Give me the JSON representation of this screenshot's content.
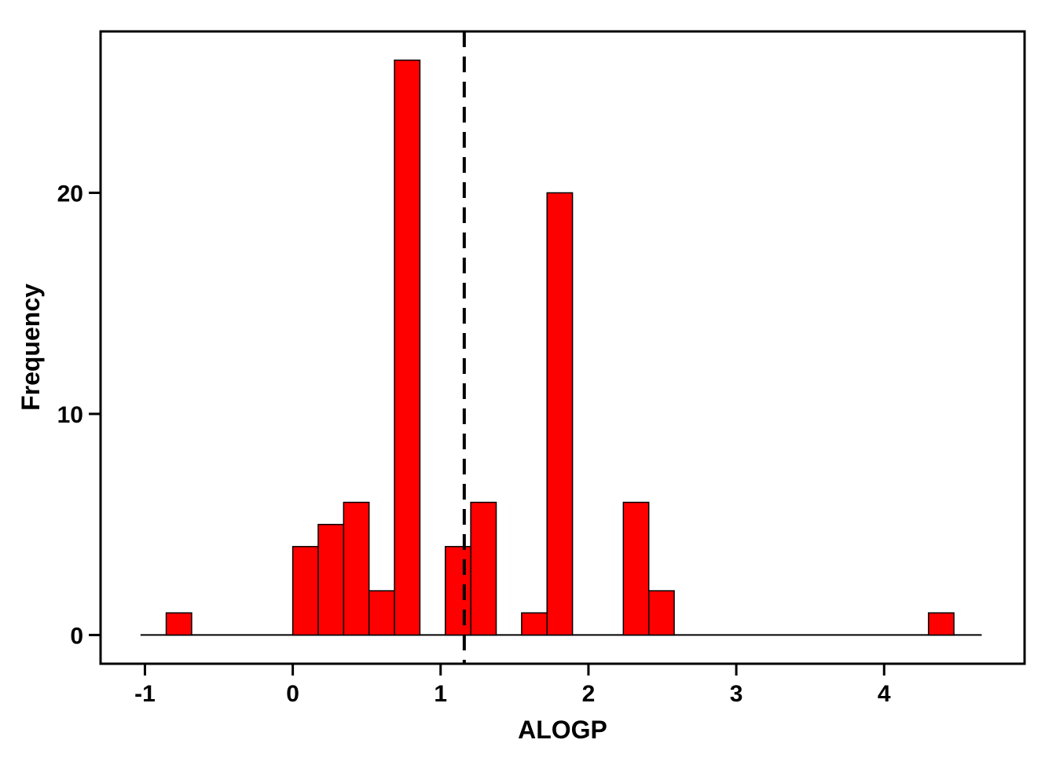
{
  "chart_data": {
    "type": "bar",
    "title": "",
    "xlabel": "ALOGP",
    "ylabel": "Frequency",
    "bin_width": 0.172,
    "bins": [
      {
        "x0": -0.856,
        "x1": -0.684,
        "count": 1
      },
      {
        "x0": 0.0,
        "x1": 0.172,
        "count": 4
      },
      {
        "x0": 0.172,
        "x1": 0.344,
        "count": 5
      },
      {
        "x0": 0.344,
        "x1": 0.516,
        "count": 6
      },
      {
        "x0": 0.516,
        "x1": 0.688,
        "count": 2
      },
      {
        "x0": 0.688,
        "x1": 0.86,
        "count": 26
      },
      {
        "x0": 1.032,
        "x1": 1.204,
        "count": 4
      },
      {
        "x0": 1.204,
        "x1": 1.376,
        "count": 6
      },
      {
        "x0": 1.548,
        "x1": 1.72,
        "count": 1
      },
      {
        "x0": 1.72,
        "x1": 1.892,
        "count": 20
      },
      {
        "x0": 2.236,
        "x1": 2.408,
        "count": 6
      },
      {
        "x0": 2.408,
        "x1": 2.58,
        "count": 2
      },
      {
        "x0": 4.3,
        "x1": 4.472,
        "count": 1
      }
    ],
    "baseline_range": [
      -1.03,
      4.66
    ],
    "reference_line": {
      "x": 1.16,
      "style": "dashed",
      "color": "#000000"
    },
    "xlim": [
      -1.3,
      4.95
    ],
    "ylim": [
      -1.3,
      27.3
    ],
    "x_ticks": [
      -1,
      0,
      1,
      2,
      3,
      4
    ],
    "x_tick_labels": [
      "-1",
      "0",
      "1",
      "2",
      "3",
      "4"
    ],
    "y_ticks": [
      0,
      10,
      20
    ],
    "y_tick_labels": [
      "0",
      "10",
      "20"
    ],
    "bar_color": "#ff0000",
    "edge_color": "#000000",
    "grid": false,
    "legend": "none"
  }
}
